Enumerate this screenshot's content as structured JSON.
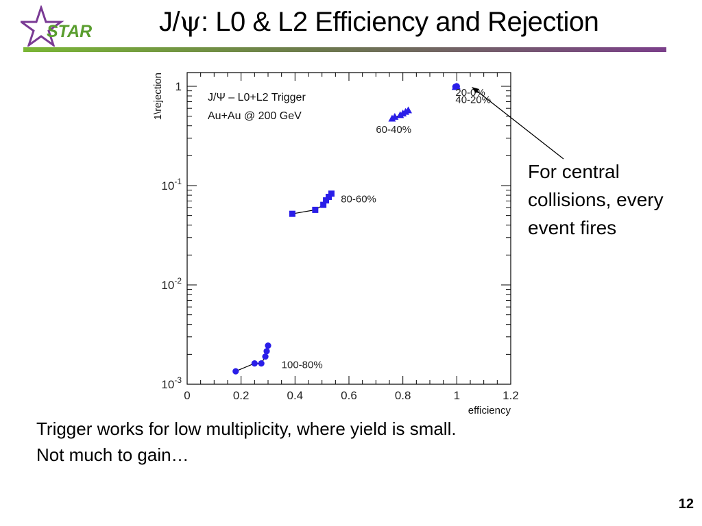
{
  "logo": {
    "text": "STAR",
    "colors": {
      "star": "#7a3a94",
      "text": "#5a9e2f"
    }
  },
  "slide": {
    "title_prefix": "J/",
    "title_symbol": "ψ",
    "title_rest": ": L0 & L2 Efficiency and Rejection",
    "callout": [
      "For central",
      "collisions, every",
      "event fires"
    ],
    "caption": [
      "Trigger works for low multiplicity, where yield is small.",
      "Not much to gain…"
    ],
    "page_number": "12"
  },
  "colors": {
    "bar_start": "#7ab636",
    "bar_end": "#7b3f8a",
    "markers": "#2a1ee8",
    "lines": "#000000"
  },
  "chart_data": {
    "type": "scatter",
    "xlabel": "efficiency",
    "ylabel": "1\\rejection",
    "xlim": [
      0,
      1.2
    ],
    "ylim": [
      0.001,
      1.3
    ],
    "yscale": "log",
    "x_ticks": [
      "0",
      "0.2",
      "0.4",
      "0.6",
      "0.8",
      "1",
      "1.2"
    ],
    "y_ticks": [
      "10^-3",
      "10^-2",
      "10^-1",
      "1"
    ],
    "annotations": [
      "J/Ψ – L0+L2 Trigger",
      "Au+Au @ 200 GeV"
    ],
    "grid": false,
    "series": [
      {
        "name": "100-80%",
        "marker": "circle",
        "x": [
          0.18,
          0.25,
          0.275,
          0.29,
          0.295,
          0.3
        ],
        "y": [
          0.00135,
          0.00162,
          0.00162,
          0.0019,
          0.00215,
          0.00245
        ]
      },
      {
        "name": "80-60%",
        "marker": "square",
        "x": [
          0.39,
          0.475,
          0.505,
          0.515,
          0.525,
          0.535
        ],
        "y": [
          0.052,
          0.057,
          0.064,
          0.071,
          0.077,
          0.083
        ]
      },
      {
        "name": "60-40%",
        "marker": "triangle",
        "x": [
          0.76,
          0.77,
          0.79,
          0.8,
          0.81,
          0.82
        ],
        "y": [
          0.47,
          0.49,
          0.51,
          0.53,
          0.55,
          0.57
        ]
      },
      {
        "name": "40-20%",
        "marker": "triangle",
        "x": [
          0.995,
          1.0
        ],
        "y": [
          0.98,
          0.995
        ]
      },
      {
        "name": "20-0%",
        "marker": "circle",
        "x": [
          0.995,
          1.0
        ],
        "y": [
          0.99,
          1.0
        ]
      }
    ]
  }
}
